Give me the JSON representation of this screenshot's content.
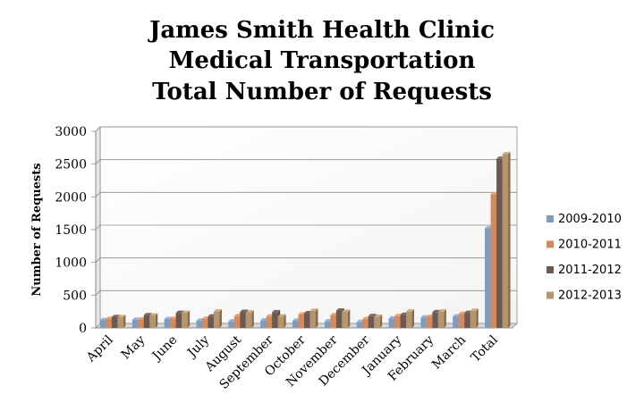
{
  "chart_data": {
    "type": "bar",
    "title_lines": [
      "James Smith Health Clinic",
      "Medical Transportation",
      "Total Number of Requests"
    ],
    "ylabel": "Number of Requests",
    "xlabel": "",
    "ylim": [
      0,
      3000
    ],
    "yticks": [
      0,
      500,
      1000,
      1500,
      2000,
      2500,
      3000
    ],
    "grid": true,
    "legend_position": "right",
    "categories": [
      "April",
      "May",
      "June",
      "July",
      "August",
      "September",
      "October",
      "November",
      "December",
      "January",
      "February",
      "March",
      "Total"
    ],
    "series": [
      {
        "name": "2009-2010",
        "color": "#7f9cc0",
        "values": [
          120,
          125,
          135,
          110,
          100,
          115,
          110,
          100,
          90,
          145,
          160,
          175,
          1520
        ]
      },
      {
        "name": "2010-2011",
        "color": "#d48a5a",
        "values": [
          140,
          130,
          140,
          140,
          180,
          175,
          205,
          195,
          135,
          180,
          170,
          215,
          2040
        ]
      },
      {
        "name": "2011-2012",
        "color": "#6a5a53",
        "values": [
          165,
          195,
          230,
          175,
          245,
          240,
          225,
          265,
          180,
          200,
          240,
          230,
          2580
        ]
      },
      {
        "name": "2012-2013",
        "color": "#b5956d",
        "values": [
          165,
          190,
          230,
          250,
          235,
          175,
          260,
          245,
          170,
          250,
          250,
          260,
          2650
        ]
      }
    ]
  }
}
